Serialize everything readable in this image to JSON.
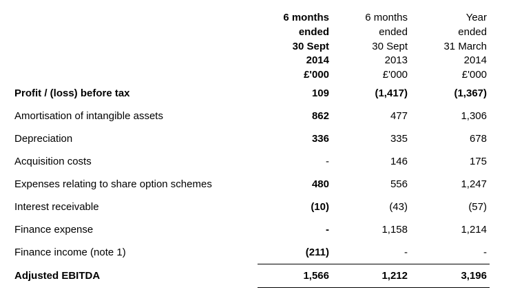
{
  "table": {
    "columns": [
      {
        "lines": [
          "6 months",
          "ended",
          "30 Sept",
          "2014",
          "£'000"
        ],
        "bold": true
      },
      {
        "lines": [
          "6 months",
          "ended",
          "30 Sept",
          "2013",
          "£'000"
        ],
        "bold": false
      },
      {
        "lines": [
          "Year",
          "ended",
          "31 March",
          "2014",
          "£'000"
        ],
        "bold": false
      }
    ],
    "rows": [
      {
        "label": "Profit / (loss) before tax",
        "values": [
          "109",
          "(1,417)",
          "(1,367)"
        ],
        "bold": true
      },
      {
        "label": "Amortisation of intangible assets",
        "values": [
          "862",
          "477",
          "1,306"
        ],
        "bold": false
      },
      {
        "label": "Depreciation",
        "values": [
          "336",
          "335",
          "678"
        ],
        "bold": false
      },
      {
        "label": "Acquisition costs",
        "values": [
          "-",
          "146",
          "175"
        ],
        "bold": false
      },
      {
        "label": "Expenses relating to share option schemes",
        "values": [
          "480",
          "556",
          "1,247"
        ],
        "bold": false
      },
      {
        "label": "Interest receivable",
        "values": [
          "(10)",
          "(43)",
          "(57)"
        ],
        "bold": false
      },
      {
        "label": "Finance expense",
        "values": [
          "-",
          "1,158",
          "1,214"
        ],
        "bold": false
      },
      {
        "label": "Finance income (note 1)",
        "values": [
          "(211)",
          "-",
          "-"
        ],
        "bold": false
      }
    ],
    "total": {
      "label": "Adjusted EBITDA",
      "values": [
        "1,566",
        "1,212",
        "3,196"
      ]
    }
  }
}
